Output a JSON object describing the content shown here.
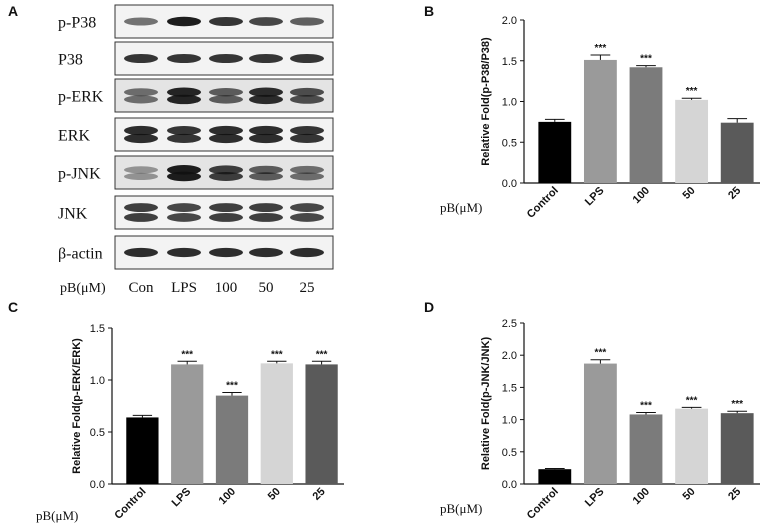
{
  "panel_labels": {
    "a": "A",
    "b": "B",
    "c": "C",
    "d": "D"
  },
  "blot": {
    "rows": [
      "p-P38",
      "P38",
      "p-ERK",
      "ERK",
      "p-JNK",
      "JNK",
      "β-actin"
    ],
    "dose_label": "pB(μM)",
    "lanes": [
      "Con",
      "LPS",
      "100",
      "50",
      "25"
    ]
  },
  "chart_data": [
    {
      "id": "B",
      "type": "bar",
      "title": "",
      "xlabel": "pB(μM)",
      "ylabel": "Relative Fold(p-P38/P38)",
      "categories": [
        "Control",
        "LPS",
        "100",
        "50",
        "25"
      ],
      "values": [
        0.75,
        1.51,
        1.42,
        1.02,
        0.74
      ],
      "errors": [
        0.03,
        0.06,
        0.02,
        0.02,
        0.05
      ],
      "significance": [
        "",
        "***",
        "***",
        "***",
        ""
      ],
      "colors": [
        "#000000",
        "#9a9a9a",
        "#7b7b7b",
        "#d5d5d5",
        "#5a5a5a"
      ],
      "ylim": [
        0,
        2.0
      ],
      "yticks": [
        "0.0",
        "0.5",
        "1.0",
        "1.5",
        "2.0"
      ],
      "grid": false
    },
    {
      "id": "C",
      "type": "bar",
      "title": "",
      "xlabel": "pB(μM)",
      "ylabel": "Relative Fold(p-ERK/ERK)",
      "categories": [
        "Control",
        "LPS",
        "100",
        "50",
        "25"
      ],
      "values": [
        0.64,
        1.15,
        0.85,
        1.16,
        1.15
      ],
      "errors": [
        0.02,
        0.03,
        0.03,
        0.02,
        0.03
      ],
      "significance": [
        "",
        "***",
        "***",
        "***",
        "***"
      ],
      "colors": [
        "#000000",
        "#9a9a9a",
        "#7b7b7b",
        "#d5d5d5",
        "#5a5a5a"
      ],
      "ylim": [
        0,
        1.5
      ],
      "yticks": [
        "0.0",
        "0.5",
        "1.0",
        "1.5"
      ],
      "grid": false
    },
    {
      "id": "D",
      "type": "bar",
      "title": "",
      "xlabel": "pB(μM)",
      "ylabel": "Relative Fold(p-JNK/JNK)",
      "categories": [
        "Control",
        "LPS",
        "100",
        "50",
        "25"
      ],
      "values": [
        0.23,
        1.87,
        1.08,
        1.17,
        1.1
      ],
      "errors": [
        0.01,
        0.06,
        0.03,
        0.02,
        0.03
      ],
      "significance": [
        "",
        "***",
        "***",
        "***",
        "***"
      ],
      "colors": [
        "#000000",
        "#9a9a9a",
        "#7b7b7b",
        "#d5d5d5",
        "#5a5a5a"
      ],
      "ylim": [
        0,
        2.5
      ],
      "yticks": [
        "0.0",
        "0.5",
        "1.0",
        "1.5",
        "2.0",
        "2.5"
      ],
      "grid": false
    }
  ]
}
